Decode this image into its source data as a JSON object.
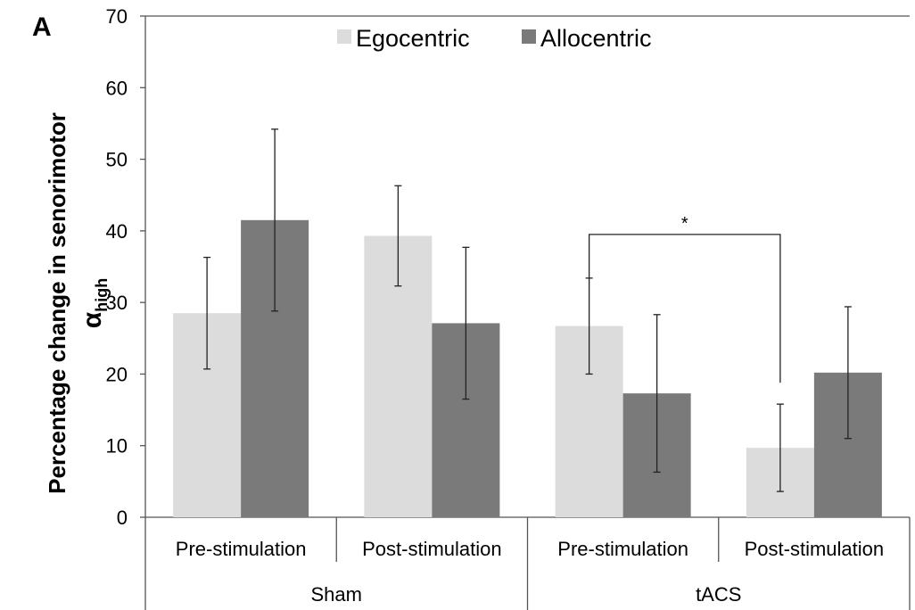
{
  "chart_data": {
    "type": "bar",
    "panel_label": "A",
    "ylabel": "Percentage change in senorimotor",
    "ylabel_symbol": "α",
    "ylabel_subscript": "high",
    "ylim": [
      0,
      70
    ],
    "yticks": [
      0,
      10,
      20,
      30,
      40,
      50,
      60,
      70
    ],
    "grid": false,
    "legend_position": "top",
    "categories": [
      "Pre-stimulation",
      "Post-stimulation",
      "Pre-stimulation",
      "Post-stimulation"
    ],
    "groups": [
      {
        "label": "Sham",
        "categories": [
          0,
          1
        ]
      },
      {
        "label": "tACS",
        "categories": [
          2,
          3
        ]
      }
    ],
    "series": [
      {
        "name": "Egocentric",
        "color": "#dcdcdc",
        "values": [
          28.5,
          39.3,
          26.7,
          9.7
        ],
        "errors": [
          7.8,
          7.0,
          6.7,
          6.1
        ]
      },
      {
        "name": "Allocentric",
        "color": "#7a7a7a",
        "values": [
          41.5,
          27.1,
          17.3,
          20.2
        ],
        "errors": [
          12.7,
          10.6,
          11.0,
          9.2
        ]
      }
    ],
    "annotations": [
      {
        "type": "significance",
        "text": "*",
        "from_category": 2,
        "to_category": 3,
        "series": "Egocentric",
        "y": 39.5
      }
    ]
  }
}
